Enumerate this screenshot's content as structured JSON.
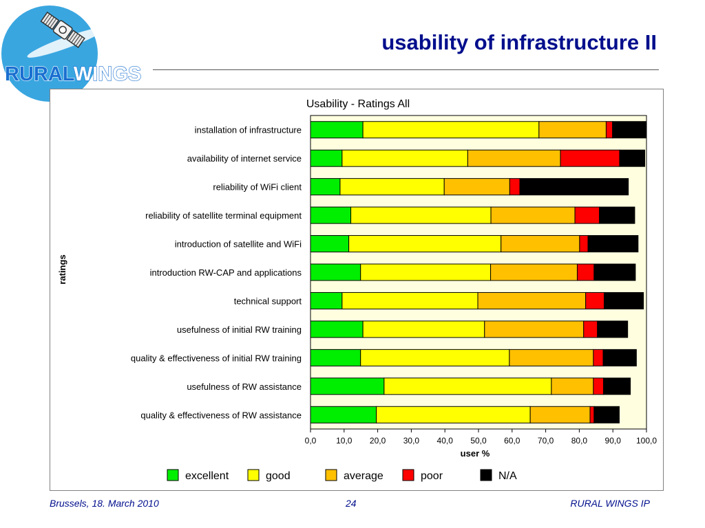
{
  "slide": {
    "title": "usability of infrastructure II",
    "logo_text": "RURALWINGS",
    "logo_text_part1": "RURAL",
    "logo_text_part2": "WINGS"
  },
  "footer": {
    "left": "Brussels, 18. March 2010",
    "page": "24",
    "right": "RURAL WINGS IP"
  },
  "colors": {
    "title": "#000e8c",
    "plot_background": "#ffffe0",
    "logo_circle": "#3aa6e0",
    "logo_text_1": "#1a6fd0",
    "logo_text_2": "#ffffff"
  },
  "chart_data": {
    "type": "bar",
    "orientation": "horizontal",
    "stacked": true,
    "title": "Usability - Ratings All",
    "xlabel": "user %",
    "ylabel": "ratings",
    "xlim": [
      0,
      100
    ],
    "xticks": [
      "0,0",
      "10,0",
      "20,0",
      "30,0",
      "40,0",
      "50,0",
      "60,0",
      "70,0",
      "80,0",
      "90,0",
      "100,0"
    ],
    "legend_position": "bottom",
    "grid": false,
    "categories": [
      "installation of infrastructure",
      "availability of internet service",
      "reliability of WiFi client",
      "reliability of satellite terminal equipment",
      "introduction of satellite and WiFi",
      "introduction RW-CAP and applications",
      "technical support",
      "usefulness of initial RW training",
      "quality & effectiveness of initial RW training",
      "usefulness of RW assistance",
      "quality & effectiveness of RW assistance"
    ],
    "series": [
      {
        "name": "excellent",
        "color": "#00ee00",
        "values": [
          15.6,
          9.4,
          8.8,
          12.0,
          11.4,
          14.9,
          9.4,
          15.6,
          14.9,
          21.9,
          19.6
        ]
      },
      {
        "name": "good",
        "color": "#ffff00",
        "values": [
          52.4,
          37.4,
          31.0,
          41.7,
          45.3,
          38.7,
          40.4,
          36.2,
          44.3,
          49.8,
          45.8
        ]
      },
      {
        "name": "average",
        "color": "#ffc000",
        "values": [
          20.0,
          27.6,
          19.5,
          25.0,
          23.4,
          25.8,
          32.1,
          29.5,
          25.0,
          12.5,
          17.8
        ]
      },
      {
        "name": "poor",
        "color": "#ff0000",
        "values": [
          1.9,
          17.6,
          3.0,
          7.3,
          2.5,
          5.0,
          5.5,
          4.1,
          2.9,
          3.0,
          1.2
        ]
      },
      {
        "name": "N/A",
        "color": "#000000",
        "values": [
          10.1,
          7.5,
          32.3,
          10.5,
          14.9,
          12.3,
          11.7,
          9.0,
          9.9,
          8.0,
          7.5
        ]
      }
    ]
  }
}
